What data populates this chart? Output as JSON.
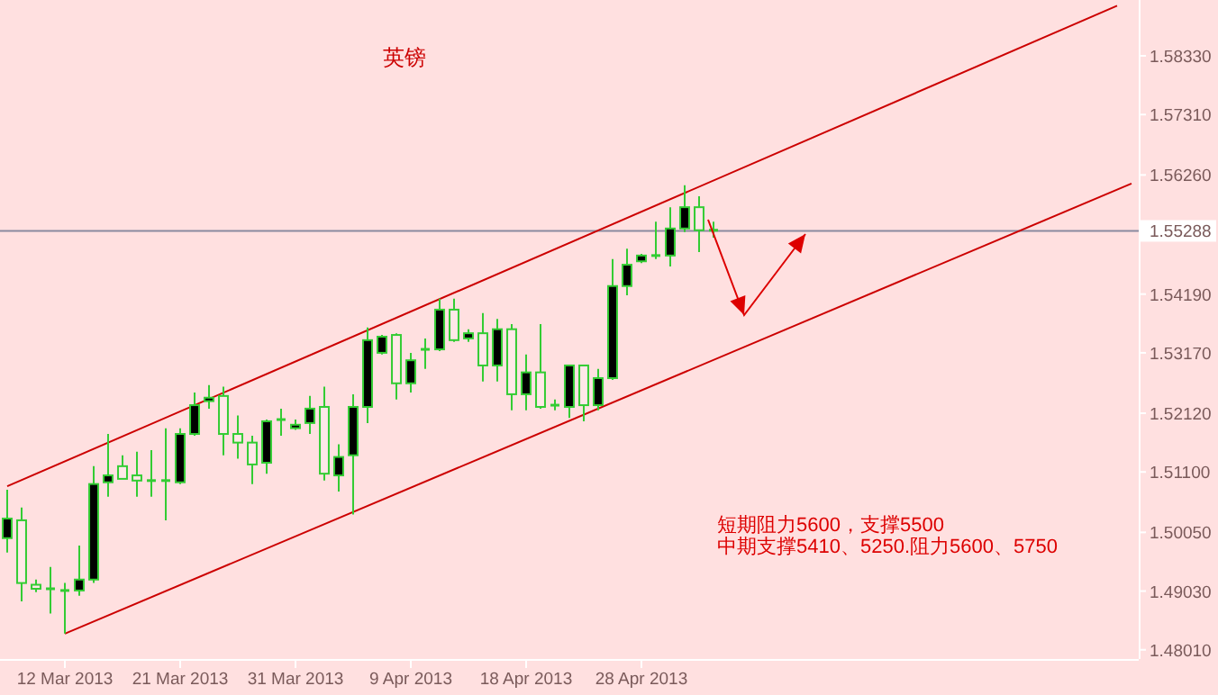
{
  "chart_data": {
    "type": "candlestick",
    "title": "英镑",
    "color": "#33cc33",
    "categories": [
      null,
      null,
      null,
      null,
      "12 Mar 2013",
      null,
      null,
      null,
      null,
      null,
      null,
      null,
      "21 Mar 2013",
      null,
      null,
      null,
      null,
      null,
      null,
      null,
      "31 Mar 2013",
      null,
      null,
      null,
      null,
      null,
      null,
      null,
      "9 Apr 2013",
      null,
      null,
      null,
      null,
      null,
      null,
      null,
      "18 Apr 2013",
      null,
      null,
      null,
      null,
      null,
      null,
      null,
      "28 Apr 2013",
      null,
      null,
      null,
      null,
      null,
      null,
      null,
      null,
      null,
      null,
      null,
      null,
      null,
      null,
      null,
      null,
      null,
      null,
      null,
      null,
      null,
      null,
      null,
      null,
      null,
      null,
      null,
      null,
      null,
      null,
      null,
      null,
      null,
      null
    ],
    "ohlc": [
      [
        1.4995,
        1.5079,
        1.497,
        1.5029
      ],
      [
        1.5026,
        1.5048,
        1.4885,
        1.4917
      ],
      [
        1.4914,
        1.4923,
        1.4901,
        1.4907
      ],
      [
        1.4907,
        1.4945,
        1.4864,
        1.4907
      ],
      [
        1.4904,
        1.4917,
        1.4829,
        1.4904
      ],
      [
        1.4904,
        1.4982,
        1.4895,
        1.4923
      ],
      [
        1.4923,
        1.512,
        1.4917,
        1.5089
      ],
      [
        1.5092,
        1.5176,
        1.5067,
        1.5104
      ],
      [
        1.512,
        1.5139,
        1.5098,
        1.5098
      ],
      [
        1.5104,
        1.5145,
        1.5067,
        1.5095
      ],
      [
        1.5095,
        1.5148,
        1.5067,
        1.5095
      ],
      [
        1.5095,
        1.5186,
        1.5026,
        1.5095
      ],
      [
        1.5092,
        1.5186,
        1.5089,
        1.5176
      ],
      [
        1.5176,
        1.5248,
        1.5173,
        1.5226
      ],
      [
        1.5233,
        1.5261,
        1.522,
        1.5239
      ],
      [
        1.5242,
        1.5258,
        1.5139,
        1.5176
      ],
      [
        1.5176,
        1.5208,
        1.5133,
        1.5161
      ],
      [
        1.5161,
        1.5173,
        1.5089,
        1.5123
      ],
      [
        1.5126,
        1.5201,
        1.5107,
        1.5198
      ],
      [
        1.5201,
        1.522,
        1.5173,
        1.5201
      ],
      [
        1.5186,
        1.5201,
        1.5183,
        1.5192
      ],
      [
        1.5195,
        1.5242,
        1.5176,
        1.522
      ],
      [
        1.5223,
        1.5258,
        1.5095,
        1.5107
      ],
      [
        1.5104,
        1.5158,
        1.5076,
        1.5136
      ],
      [
        1.5139,
        1.5245,
        1.5036,
        1.5223
      ],
      [
        1.5223,
        1.5361,
        1.5195,
        1.5339
      ],
      [
        1.5317,
        1.5348,
        1.5314,
        1.5345
      ],
      [
        1.5348,
        1.5351,
        1.5236,
        1.5264
      ],
      [
        1.5264,
        1.5317,
        1.5248,
        1.5304
      ],
      [
        1.5323,
        1.5342,
        1.5289,
        1.5323
      ],
      [
        1.5323,
        1.5411,
        1.532,
        1.5392
      ],
      [
        1.5392,
        1.5411,
        1.5336,
        1.5339
      ],
      [
        1.5342,
        1.5358,
        1.5336,
        1.5351
      ],
      [
        1.5351,
        1.5386,
        1.5267,
        1.5295
      ],
      [
        1.5295,
        1.5376,
        1.5267,
        1.5358
      ],
      [
        1.5358,
        1.5367,
        1.5217,
        1.5245
      ],
      [
        1.5245,
        1.5314,
        1.5217,
        1.5283
      ],
      [
        1.5283,
        1.5367,
        1.522,
        1.5223
      ],
      [
        1.5226,
        1.5236,
        1.5217,
        1.5226
      ],
      [
        1.5223,
        1.5295,
        1.5204,
        1.5295
      ],
      [
        1.5295,
        1.5295,
        1.5198,
        1.5226
      ],
      [
        1.5226,
        1.5289,
        1.5217,
        1.5273
      ],
      [
        1.5273,
        1.548,
        1.527,
        1.5433
      ],
      [
        1.5433,
        1.5498,
        1.5417,
        1.547
      ],
      [
        1.5476,
        1.5489,
        1.5473,
        1.5486
      ],
      [
        1.5486,
        1.5545,
        1.548,
        1.5486
      ],
      [
        1.5486,
        1.557,
        1.5467,
        1.5533
      ],
      [
        1.5533,
        1.5608,
        1.5527,
        1.557
      ],
      [
        1.557,
        1.5589,
        1.5492,
        1.553
      ],
      [
        1.553,
        1.5545,
        1.5517,
        1.553
      ],
      null,
      null,
      null,
      null,
      null,
      null,
      null,
      null,
      null,
      null,
      null,
      null,
      null,
      null,
      null,
      null,
      null,
      null,
      null,
      null,
      null,
      null,
      null,
      null,
      null,
      null,
      null,
      null,
      null
    ],
    "series": [
      {
        "type": "line",
        "color": "#cc0000",
        "values": [
          1.5085,
          null,
          null,
          null,
          null,
          null,
          null,
          null,
          null,
          null,
          null,
          null,
          null,
          null,
          null,
          null,
          null,
          null,
          null,
          null,
          null,
          null,
          null,
          null,
          null,
          null,
          null,
          null,
          null,
          null,
          null,
          null,
          null,
          null,
          null,
          null,
          null,
          null,
          null,
          null,
          null,
          null,
          null,
          null,
          null,
          null,
          null,
          null,
          null,
          null,
          null,
          null,
          null,
          null,
          null,
          null,
          null,
          null,
          null,
          null,
          null,
          null,
          null,
          null,
          null,
          null,
          null,
          null,
          null,
          null,
          null,
          null,
          null,
          null,
          null,
          null,
          null,
          1.592,
          null
        ]
      },
      {
        "type": "line",
        "color": "#cc0000",
        "values": [
          null,
          null,
          null,
          null,
          1.4829,
          null,
          null,
          null,
          null,
          null,
          null,
          null,
          null,
          null,
          null,
          null,
          null,
          null,
          null,
          null,
          null,
          null,
          null,
          null,
          null,
          null,
          null,
          null,
          null,
          null,
          null,
          null,
          null,
          null,
          null,
          null,
          null,
          null,
          null,
          null,
          null,
          null,
          null,
          null,
          null,
          null,
          null,
          null,
          null,
          null,
          null,
          null,
          null,
          null,
          null,
          null,
          null,
          null,
          null,
          null,
          null,
          null,
          null,
          null,
          null,
          null,
          null,
          null,
          null,
          null,
          null,
          null,
          null,
          null,
          null,
          null,
          null,
          null,
          1.5611
        ]
      }
    ],
    "ylim": [
      1.4785,
      1.593
    ],
    "yticks": [
      {
        "value": 1.4801,
        "label": "1.48010"
      },
      {
        "value": 1.4903,
        "label": "1.49030"
      },
      {
        "value": 1.5005,
        "label": "1.50050"
      },
      {
        "value": 1.511,
        "label": "1.51100"
      },
      {
        "value": 1.5212,
        "label": "1.52120"
      },
      {
        "value": 1.5317,
        "label": "1.53170"
      },
      {
        "value": 1.5419,
        "label": "1.54190"
      },
      {
        "value": 1.5626,
        "label": "1.56260"
      },
      {
        "value": 1.5731,
        "label": "1.57310"
      },
      {
        "value": 1.5833,
        "label": "1.58330"
      }
    ],
    "ref_lines": [
      {
        "axis": "y",
        "value": 1.55288,
        "label": "1.55288",
        "color": "#8a8aa0"
      }
    ],
    "annotations": [
      "短期阻力5600，支撑5500",
      "中期支撑5410、5250.阻力5600、5750"
    ]
  }
}
